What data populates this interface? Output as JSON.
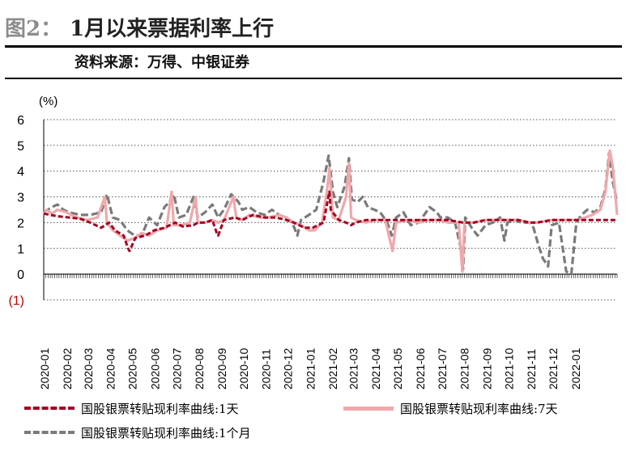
{
  "header": {
    "figure_label": "图2：",
    "title": "1月以来票据利率上行",
    "source": "资料来源：万得、中银证券"
  },
  "chart_data": {
    "type": "line",
    "ylabel": "(%)",
    "ylim": [
      -1,
      6
    ],
    "yticks": [
      6,
      5,
      4,
      3,
      2,
      1,
      0,
      -1
    ],
    "ytick_labels": [
      "6",
      "5",
      "4",
      "3",
      "2",
      "1",
      "0",
      "(1)"
    ],
    "xlim": [
      "2020-01-01",
      "2022-02-28"
    ],
    "xtick_labels": [
      "2020-01",
      "2020-02",
      "2020-03",
      "2020-04",
      "2020-05",
      "2020-06",
      "2020-07",
      "2020-08",
      "2020-09",
      "2020-10",
      "2020-11",
      "2020-12",
      "2021-01",
      "2021-02",
      "2021-03",
      "2021-04",
      "2021-05",
      "2021-06",
      "2021-07",
      "2021-08",
      "2021-09",
      "2021-10",
      "2021-11",
      "2021-12",
      "2022-01"
    ],
    "grid": "horizontal dotted",
    "legend_position": "bottom",
    "series": [
      {
        "name": "国股银票转贴现利率曲线:1天",
        "color": "#a50021",
        "style": "dashed",
        "points": [
          [
            "2020-01-01",
            2.35
          ],
          [
            "2020-01-10",
            2.3
          ],
          [
            "2020-01-20",
            2.25
          ],
          [
            "2020-02-05",
            2.2
          ],
          [
            "2020-02-20",
            2.15
          ],
          [
            "2020-03-05",
            2.0
          ],
          [
            "2020-03-20",
            1.8
          ],
          [
            "2020-03-31",
            2.0
          ],
          [
            "2020-04-08",
            1.7
          ],
          [
            "2020-04-20",
            1.5
          ],
          [
            "2020-04-26",
            1.0
          ],
          [
            "2020-04-28",
            0.9
          ],
          [
            "2020-05-06",
            1.4
          ],
          [
            "2020-05-20",
            1.5
          ],
          [
            "2020-06-01",
            1.7
          ],
          [
            "2020-06-15",
            1.8
          ],
          [
            "2020-06-30",
            2.0
          ],
          [
            "2020-07-10",
            1.85
          ],
          [
            "2020-07-25",
            1.9
          ],
          [
            "2020-07-31",
            2.0
          ],
          [
            "2020-08-10",
            2.0
          ],
          [
            "2020-08-20",
            2.1
          ],
          [
            "2020-08-26",
            1.6
          ],
          [
            "2020-08-28",
            1.5
          ],
          [
            "2020-09-05",
            2.1
          ],
          [
            "2020-09-20",
            2.2
          ],
          [
            "2020-09-30",
            2.1
          ],
          [
            "2020-10-15",
            2.3
          ],
          [
            "2020-10-31",
            2.2
          ],
          [
            "2020-11-15",
            2.2
          ],
          [
            "2020-11-30",
            2.1
          ],
          [
            "2020-12-10",
            2.0
          ],
          [
            "2020-12-25",
            1.8
          ],
          [
            "2021-01-05",
            1.8
          ],
          [
            "2021-01-20",
            2.0
          ],
          [
            "2021-01-28",
            3.2
          ],
          [
            "2021-01-30",
            2.5
          ],
          [
            "2021-02-10",
            2.1
          ],
          [
            "2021-02-20",
            2.0
          ],
          [
            "2021-02-27",
            1.9
          ],
          [
            "2021-03-05",
            2.0
          ],
          [
            "2021-03-20",
            2.1
          ],
          [
            "2021-03-31",
            2.1
          ],
          [
            "2021-04-15",
            2.1
          ],
          [
            "2021-04-30",
            2.1
          ],
          [
            "2021-05-15",
            2.1
          ],
          [
            "2021-05-31",
            2.1
          ],
          [
            "2021-06-15",
            2.1
          ],
          [
            "2021-06-30",
            2.1
          ],
          [
            "2021-07-10",
            2.1
          ],
          [
            "2021-07-31",
            2.0
          ],
          [
            "2021-08-15",
            2.0
          ],
          [
            "2021-08-31",
            2.1
          ],
          [
            "2021-09-15",
            2.1
          ],
          [
            "2021-09-30",
            2.1
          ],
          [
            "2021-10-15",
            2.1
          ],
          [
            "2021-10-31",
            2.0
          ],
          [
            "2021-11-10",
            2.0
          ],
          [
            "2021-11-30",
            2.1
          ],
          [
            "2021-12-15",
            2.1
          ],
          [
            "2021-12-31",
            2.1
          ],
          [
            "2022-01-10",
            2.1
          ],
          [
            "2022-01-20",
            2.1
          ],
          [
            "2022-01-31",
            2.1
          ],
          [
            "2022-02-15",
            2.1
          ],
          [
            "2022-02-28",
            2.1
          ]
        ]
      },
      {
        "name": "国股银票转贴现利率曲线:7天",
        "color": "#f0a8ab",
        "style": "solid",
        "points": [
          [
            "2020-01-01",
            2.3
          ],
          [
            "2020-01-05",
            2.5
          ],
          [
            "2020-01-12",
            2.35
          ],
          [
            "2020-01-20",
            2.5
          ],
          [
            "2020-02-01",
            2.4
          ],
          [
            "2020-02-15",
            2.2
          ],
          [
            "2020-03-01",
            2.1
          ],
          [
            "2020-03-15",
            2.2
          ],
          [
            "2020-03-25",
            3.0
          ],
          [
            "2020-03-28",
            2.0
          ],
          [
            "2020-04-05",
            1.7
          ],
          [
            "2020-04-15",
            1.5
          ],
          [
            "2020-04-25",
            1.3
          ],
          [
            "2020-05-05",
            1.4
          ],
          [
            "2020-05-15",
            1.6
          ],
          [
            "2020-05-25",
            1.5
          ],
          [
            "2020-06-05",
            1.7
          ],
          [
            "2020-06-18",
            1.8
          ],
          [
            "2020-06-25",
            3.2
          ],
          [
            "2020-06-28",
            1.9
          ],
          [
            "2020-07-08",
            1.9
          ],
          [
            "2020-07-20",
            2.0
          ],
          [
            "2020-07-28",
            3.0
          ],
          [
            "2020-07-31",
            2.0
          ],
          [
            "2020-08-10",
            2.0
          ],
          [
            "2020-08-20",
            2.1
          ],
          [
            "2020-08-28",
            2.0
          ],
          [
            "2020-09-05",
            2.1
          ],
          [
            "2020-09-18",
            3.0
          ],
          [
            "2020-09-22",
            2.2
          ],
          [
            "2020-09-30",
            2.1
          ],
          [
            "2020-10-10",
            2.3
          ],
          [
            "2020-10-25",
            2.2
          ],
          [
            "2020-11-05",
            2.2
          ],
          [
            "2020-11-20",
            2.3
          ],
          [
            "2020-11-30",
            2.2
          ],
          [
            "2020-12-10",
            2.0
          ],
          [
            "2020-12-20",
            1.9
          ],
          [
            "2020-12-31",
            1.7
          ],
          [
            "2021-01-08",
            1.7
          ],
          [
            "2021-01-18",
            2.0
          ],
          [
            "2021-01-25",
            3.3
          ],
          [
            "2021-01-28",
            4.1
          ],
          [
            "2021-02-02",
            2.2
          ],
          [
            "2021-02-10",
            2.1
          ],
          [
            "2021-02-20",
            3.0
          ],
          [
            "2021-02-24",
            4.3
          ],
          [
            "2021-02-27",
            2.2
          ],
          [
            "2021-03-05",
            2.1
          ],
          [
            "2021-03-20",
            2.0
          ],
          [
            "2021-03-31",
            2.1
          ],
          [
            "2021-04-15",
            2.1
          ],
          [
            "2021-04-25",
            0.9
          ],
          [
            "2021-04-30",
            2.0
          ],
          [
            "2021-05-15",
            2.1
          ],
          [
            "2021-05-31",
            2.0
          ],
          [
            "2021-06-15",
            2.1
          ],
          [
            "2021-06-30",
            2.1
          ],
          [
            "2021-07-10",
            2.0
          ],
          [
            "2021-07-25",
            2.0
          ],
          [
            "2021-07-30",
            0.1
          ],
          [
            "2021-08-02",
            2.0
          ],
          [
            "2021-08-15",
            2.0
          ],
          [
            "2021-08-31",
            2.1
          ],
          [
            "2021-09-15",
            2.1
          ],
          [
            "2021-09-30",
            2.1
          ],
          [
            "2021-10-15",
            2.1
          ],
          [
            "2021-10-31",
            2.0
          ],
          [
            "2021-11-10",
            2.0
          ],
          [
            "2021-11-30",
            2.1
          ],
          [
            "2021-12-10",
            2.1
          ],
          [
            "2021-12-28",
            2.1
          ],
          [
            "2022-01-05",
            2.1
          ],
          [
            "2022-01-15",
            2.2
          ],
          [
            "2022-01-25",
            2.3
          ],
          [
            "2022-02-05",
            2.5
          ],
          [
            "2022-02-12",
            3.2
          ],
          [
            "2022-02-18",
            4.8
          ],
          [
            "2022-02-22",
            4.2
          ],
          [
            "2022-02-28",
            2.3
          ]
        ]
      },
      {
        "name": "国股银票转贴现利率曲线:1个月",
        "color": "#7a7a7a",
        "style": "dashed",
        "points": [
          [
            "2020-01-01",
            2.4
          ],
          [
            "2020-01-12",
            2.6
          ],
          [
            "2020-01-20",
            2.7
          ],
          [
            "2020-01-28",
            2.5
          ],
          [
            "2020-02-05",
            2.4
          ],
          [
            "2020-02-20",
            2.3
          ],
          [
            "2020-03-05",
            2.3
          ],
          [
            "2020-03-20",
            2.4
          ],
          [
            "2020-03-28",
            3.1
          ],
          [
            "2020-04-05",
            2.2
          ],
          [
            "2020-04-15",
            2.1
          ],
          [
            "2020-04-25",
            1.7
          ],
          [
            "2020-05-05",
            1.5
          ],
          [
            "2020-05-15",
            1.5
          ],
          [
            "2020-05-25",
            2.2
          ],
          [
            "2020-06-05",
            1.9
          ],
          [
            "2020-06-15",
            2.6
          ],
          [
            "2020-06-22",
            2.8
          ],
          [
            "2020-06-28",
            3.1
          ],
          [
            "2020-07-05",
            2.2
          ],
          [
            "2020-07-15",
            2.3
          ],
          [
            "2020-07-25",
            3.0
          ],
          [
            "2020-07-31",
            2.2
          ],
          [
            "2020-08-10",
            2.4
          ],
          [
            "2020-08-20",
            2.7
          ],
          [
            "2020-08-28",
            2.2
          ],
          [
            "2020-09-05",
            2.5
          ],
          [
            "2020-09-15",
            3.1
          ],
          [
            "2020-09-25",
            2.8
          ],
          [
            "2020-09-30",
            2.5
          ],
          [
            "2020-10-10",
            2.6
          ],
          [
            "2020-10-20",
            2.4
          ],
          [
            "2020-10-31",
            2.3
          ],
          [
            "2020-11-10",
            2.5
          ],
          [
            "2020-11-20",
            2.3
          ],
          [
            "2020-11-30",
            2.2
          ],
          [
            "2020-12-08",
            2.0
          ],
          [
            "2020-12-15",
            1.5
          ],
          [
            "2020-12-20",
            2.1
          ],
          [
            "2020-12-31",
            2.3
          ],
          [
            "2021-01-10",
            2.5
          ],
          [
            "2021-01-20",
            3.6
          ],
          [
            "2021-01-27",
            4.6
          ],
          [
            "2021-02-02",
            3.2
          ],
          [
            "2021-02-08",
            2.6
          ],
          [
            "2021-02-18",
            3.4
          ],
          [
            "2021-02-24",
            4.5
          ],
          [
            "2021-02-28",
            2.9
          ],
          [
            "2021-03-08",
            2.8
          ],
          [
            "2021-03-15",
            3.0
          ],
          [
            "2021-03-22",
            2.6
          ],
          [
            "2021-03-31",
            2.5
          ],
          [
            "2021-04-08",
            2.4
          ],
          [
            "2021-04-18",
            2.0
          ],
          [
            "2021-04-24",
            1.5
          ],
          [
            "2021-04-30",
            2.2
          ],
          [
            "2021-05-10",
            2.4
          ],
          [
            "2021-05-20",
            1.9
          ],
          [
            "2021-05-31",
            2.0
          ],
          [
            "2021-06-05",
            2.2
          ],
          [
            "2021-06-15",
            2.6
          ],
          [
            "2021-06-25",
            2.4
          ],
          [
            "2021-06-30",
            2.2
          ],
          [
            "2021-07-10",
            2.2
          ],
          [
            "2021-07-20",
            2.0
          ],
          [
            "2021-07-28",
            1.0
          ],
          [
            "2021-07-31",
            0.2
          ],
          [
            "2021-08-03",
            2.2
          ],
          [
            "2021-08-12",
            1.8
          ],
          [
            "2021-08-20",
            1.5
          ],
          [
            "2021-08-31",
            1.9
          ],
          [
            "2021-09-10",
            2.0
          ],
          [
            "2021-09-20",
            2.2
          ],
          [
            "2021-09-26",
            1.3
          ],
          [
            "2021-09-30",
            2.0
          ],
          [
            "2021-10-10",
            2.1
          ],
          [
            "2021-10-20",
            2.0
          ],
          [
            "2021-10-31",
            2.0
          ],
          [
            "2021-11-05",
            1.8
          ],
          [
            "2021-11-12",
            1.1
          ],
          [
            "2021-11-18",
            0.6
          ],
          [
            "2021-11-25",
            0.3
          ],
          [
            "2021-11-30",
            1.9
          ],
          [
            "2021-12-10",
            2.0
          ],
          [
            "2021-12-20",
            0.1
          ],
          [
            "2021-12-27",
            0.0
          ],
          [
            "2022-01-03",
            2.0
          ],
          [
            "2022-01-10",
            2.3
          ],
          [
            "2022-01-18",
            2.5
          ],
          [
            "2022-01-28",
            2.4
          ],
          [
            "2022-02-05",
            2.6
          ],
          [
            "2022-02-12",
            3.3
          ],
          [
            "2022-02-17",
            4.7
          ],
          [
            "2022-02-22",
            3.6
          ],
          [
            "2022-02-28",
            2.8
          ]
        ]
      }
    ]
  }
}
